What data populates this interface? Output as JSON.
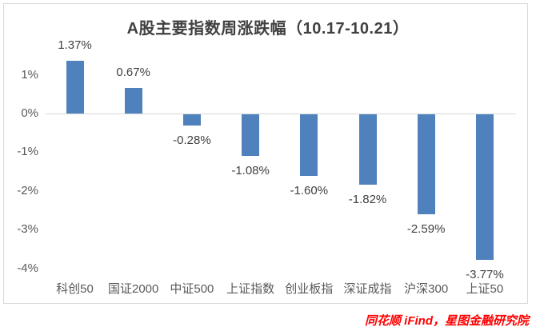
{
  "chart_data": {
    "type": "bar",
    "title": "A股主要指数周涨跌幅（10.17-10.21）",
    "categories": [
      "科创50",
      "国证2000",
      "中证500",
      "上证指数",
      "创业板指",
      "深证成指",
      "沪深300",
      "上证50"
    ],
    "values": [
      1.37,
      0.67,
      -0.28,
      -1.08,
      -1.6,
      -1.82,
      -2.59,
      -3.77
    ],
    "data_labels": [
      "1.37%",
      "0.67%",
      "-0.28%",
      "-1.08%",
      "-1.60%",
      "-1.82%",
      "-2.59%",
      "-3.77%"
    ],
    "y_tick_labels": [
      "1%",
      "0%",
      "-1%",
      "-2%",
      "-3%",
      "-4%"
    ],
    "y_tick_values": [
      1,
      0,
      -1,
      -2,
      -3,
      -4
    ],
    "ylim": [
      -4.4,
      1.9
    ],
    "xlabel": "",
    "ylabel": "",
    "grid": false,
    "legend": "none",
    "bar_color": "#4F81BD"
  },
  "source_note": "同花顺 iFind，星图金融研究院",
  "colors": {
    "bar": "#4F81BD",
    "border": "#D9D9D9",
    "title_text": "#404040",
    "data_label_text": "#404040",
    "axis_text": "#595959",
    "source_text": "#FF0000"
  }
}
